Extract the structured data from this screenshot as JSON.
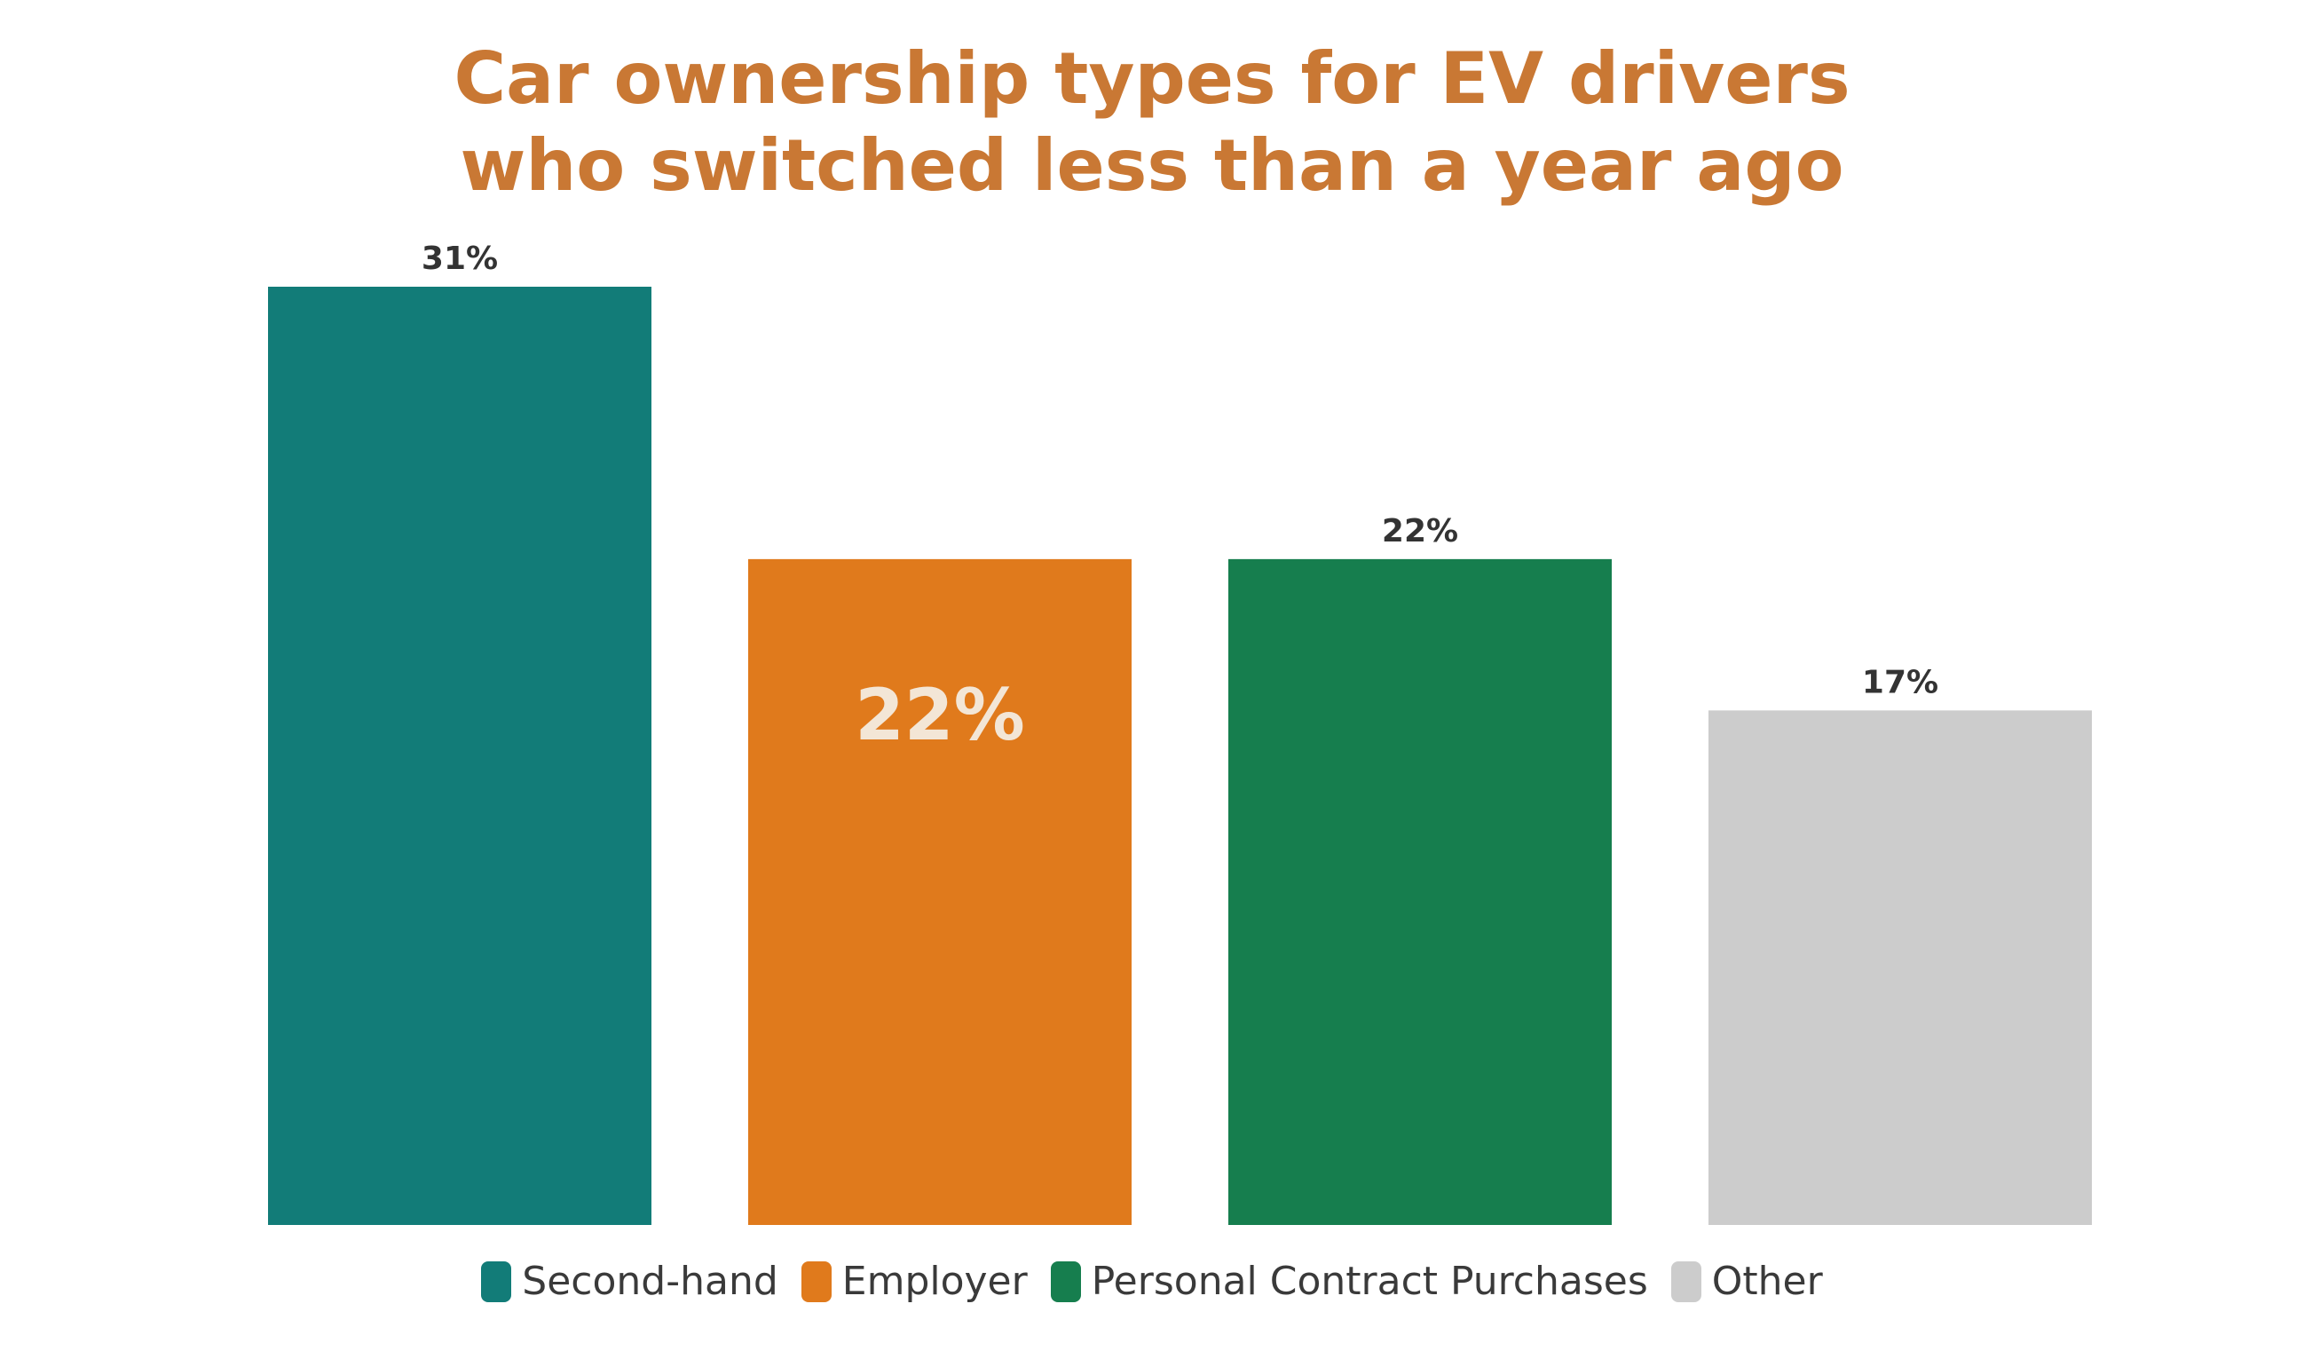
{
  "chart_data": {
    "type": "bar",
    "title_lines": [
      "Car ownership types for EV drivers",
      "who switched less than a year ago"
    ],
    "categories": [
      "Second-hand",
      "Employer",
      "Personal Contract Purchases",
      "Other"
    ],
    "values": [
      31,
      22,
      22,
      17
    ],
    "value_labels": [
      "31%",
      "22%",
      "22%",
      "17%"
    ],
    "label_position": [
      "above",
      "inside",
      "above",
      "above"
    ],
    "colors": [
      "#127c78",
      "#e07a1c",
      "#167e4e",
      "#cccccc"
    ],
    "ylim": [
      0,
      31
    ],
    "grid": false,
    "legend": "bottom",
    "title_color": "#c97834"
  }
}
